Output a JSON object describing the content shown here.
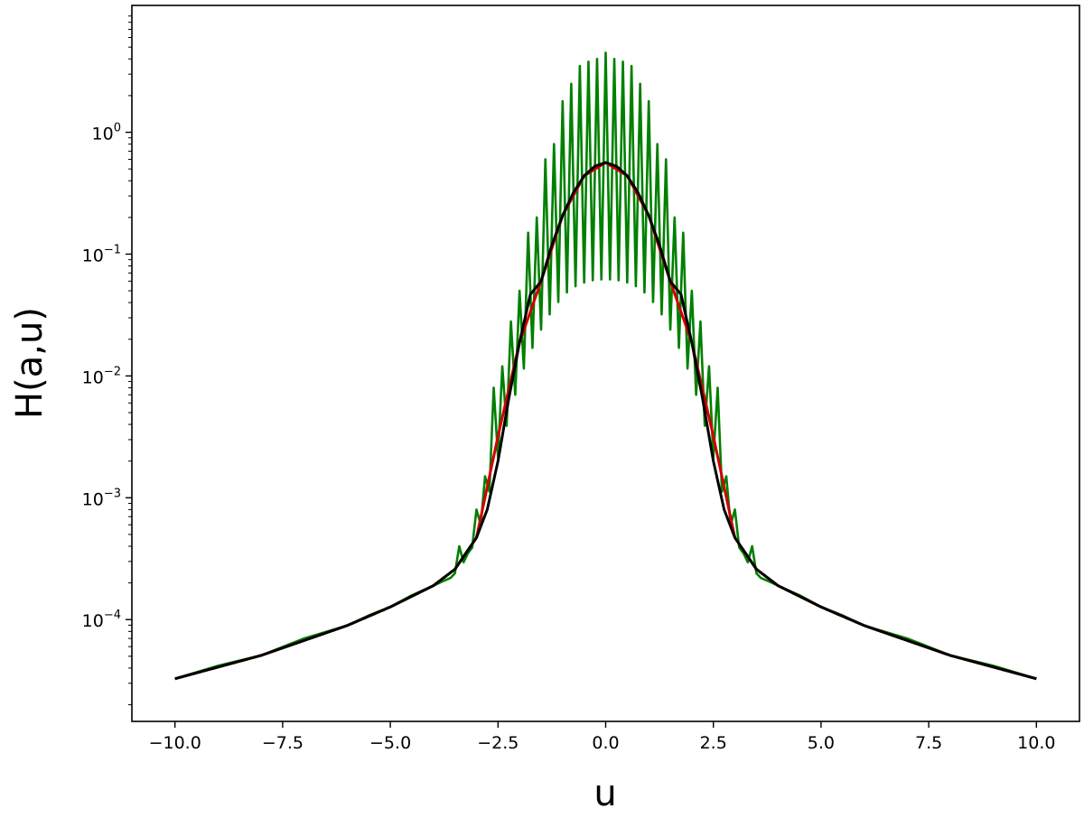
{
  "chart_data": {
    "type": "line",
    "title": "",
    "xlabel": "u",
    "ylabel": "H(a,u)",
    "xlim": [
      -11,
      11
    ],
    "ylim": [
      1.46e-05,
      11
    ],
    "yscale": "log",
    "grid": false,
    "legend": "none",
    "xticks": [
      {
        "value": -10,
        "label": "−10.0"
      },
      {
        "value": -7.5,
        "label": "−7.5"
      },
      {
        "value": -5,
        "label": "−5.0"
      },
      {
        "value": -2.5,
        "label": "−2.5"
      },
      {
        "value": 0,
        "label": "0.0"
      },
      {
        "value": 2.5,
        "label": "2.5"
      },
      {
        "value": 5,
        "label": "5.0"
      },
      {
        "value": 7.5,
        "label": "7.5"
      },
      {
        "value": 10,
        "label": "10.0"
      }
    ],
    "yticks": [
      {
        "value": 0.0001,
        "base": "10",
        "exp": "−4"
      },
      {
        "value": 0.001,
        "base": "10",
        "exp": "−3"
      },
      {
        "value": 0.01,
        "base": "10",
        "exp": "−2"
      },
      {
        "value": 0.1,
        "base": "10",
        "exp": "−1"
      },
      {
        "value": 1,
        "base": "10",
        "exp": "0"
      }
    ],
    "series": [
      {
        "color": "#008000",
        "style": "oscillating",
        "x": [
          -10,
          -8,
          -6,
          -5,
          -4,
          -3.6,
          -3.4,
          -3.2,
          -3.0,
          -2.8,
          -2.6,
          -2.4,
          -2.2,
          -2.0,
          -1.8,
          -1.6,
          -1.4,
          -1.2,
          -1.0,
          -0.8,
          -0.6,
          -0.4,
          -0.2,
          0,
          0.2,
          0.4,
          0.6,
          0.8,
          1.0,
          1.2,
          1.4,
          1.6,
          1.8,
          2.0,
          2.2,
          2.4,
          2.6,
          2.8,
          3.0,
          3.2,
          3.4,
          3.6,
          4,
          5,
          6,
          8,
          10
        ],
        "y": [
          3.27e-05,
          5.08e-05,
          8.94e-05,
          0.000127,
          0.00019,
          0.00022,
          0.0004,
          0.00035,
          0.0008,
          0.0015,
          0.008,
          0.012,
          0.028,
          0.05,
          0.15,
          0.2,
          0.6,
          0.8,
          1.8,
          2.5,
          3.5,
          3.8,
          4.0,
          4.5,
          4.0,
          3.8,
          3.5,
          2.5,
          1.8,
          0.8,
          0.6,
          0.2,
          0.15,
          0.05,
          0.028,
          0.012,
          0.008,
          0.0015,
          0.0008,
          0.00035,
          0.0004,
          0.00022,
          0.00019,
          0.000127,
          8.94e-05,
          5.08e-05,
          3.27e-05
        ],
        "trough_y": [
          3.27e-05,
          5.08e-05,
          8.94e-05,
          0.000127,
          0.00019,
          0.00022,
          0.00026,
          0.00033,
          0.00045,
          0.00075,
          0.0015,
          0.0028,
          0.005,
          0.009,
          0.014,
          0.02,
          0.028,
          0.036,
          0.045,
          0.052,
          0.057,
          0.06,
          0.062,
          0.062,
          0.062,
          0.06,
          0.057,
          0.052,
          0.045,
          0.036,
          0.028,
          0.02,
          0.014,
          0.009,
          0.005,
          0.0028,
          0.0015,
          0.00075,
          0.00045,
          0.00033,
          0.00026,
          0.00022,
          0.00019,
          0.000127,
          8.94e-05,
          5.08e-05,
          3.27e-05
        ]
      },
      {
        "color": "#d00000",
        "style": "smooth",
        "x": [
          -10,
          -8,
          -6,
          -5,
          -4,
          -3.5,
          -3.0,
          -2.5,
          -2.0,
          -1.5,
          -1.0,
          -0.5,
          0,
          0.5,
          1.0,
          1.5,
          2.0,
          2.5,
          3.0,
          3.5,
          4,
          5,
          6,
          8,
          10
        ],
        "y": [
          3.27e-05,
          5.08e-05,
          8.94e-05,
          0.000127,
          0.00019,
          0.000259,
          0.00047,
          0.0032,
          0.0188,
          0.0598,
          0.2072,
          0.4394,
          0.5642,
          0.4394,
          0.2072,
          0.0598,
          0.0188,
          0.0032,
          0.00047,
          0.000259,
          0.00019,
          0.000127,
          8.94e-05,
          5.08e-05,
          3.27e-05
        ]
      },
      {
        "color": "#000000",
        "style": "smooth",
        "x": [
          -10,
          -8,
          -6,
          -5,
          -4,
          -3.5,
          -3.0,
          -2.75,
          -2.5,
          -2.25,
          -2.0,
          -1.75,
          -1.5,
          -1.25,
          -1.0,
          -0.75,
          -0.5,
          -0.25,
          0,
          0.25,
          0.5,
          0.75,
          1.0,
          1.25,
          1.5,
          1.75,
          2.0,
          2.25,
          2.5,
          2.75,
          3.0,
          3.5,
          4,
          5,
          6,
          8,
          10
        ],
        "y": [
          3.27e-05,
          5.08e-05,
          8.94e-05,
          0.000127,
          0.00019,
          0.000259,
          0.00047,
          0.0008,
          0.002,
          0.0065,
          0.0188,
          0.0466,
          0.0598,
          0.1185,
          0.2072,
          0.32,
          0.4394,
          0.527,
          0.5642,
          0.527,
          0.4394,
          0.32,
          0.2072,
          0.1185,
          0.0598,
          0.0466,
          0.0188,
          0.0065,
          0.002,
          0.0008,
          0.00047,
          0.000259,
          0.00019,
          0.000127,
          8.94e-05,
          5.08e-05,
          3.27e-05
        ]
      }
    ]
  }
}
